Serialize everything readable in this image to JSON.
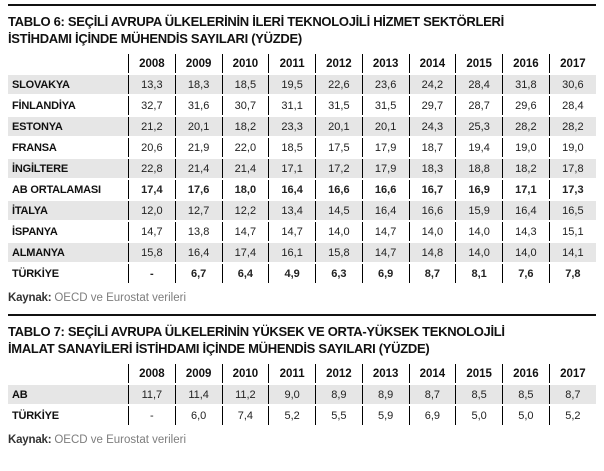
{
  "tables": [
    {
      "title_lines": [
        "TABLO 6: SEÇİLİ AVRUPA ÜLKELERİNİN İLERİ TEKNOLOJİLİ HİZMET SEKTÖRLERİ",
        "İSTİHDAMI İÇİNDE MÜHENDİS SAYILARI (YÜZDE)"
      ],
      "years": [
        "2008",
        "2009",
        "2010",
        "2011",
        "2012",
        "2013",
        "2014",
        "2015",
        "2016",
        "2017"
      ],
      "rows": [
        {
          "label": "SLOVAKYA",
          "bold": false,
          "values": [
            "13,3",
            "18,3",
            "18,5",
            "19,5",
            "22,6",
            "23,6",
            "24,2",
            "28,4",
            "31,8",
            "30,6"
          ]
        },
        {
          "label": "FİNLANDİYA",
          "bold": false,
          "values": [
            "32,7",
            "31,6",
            "30,7",
            "31,1",
            "31,5",
            "31,5",
            "29,7",
            "28,7",
            "29,6",
            "28,4"
          ]
        },
        {
          "label": "ESTONYA",
          "bold": false,
          "values": [
            "21,2",
            "20,1",
            "18,2",
            "23,3",
            "20,1",
            "20,1",
            "24,3",
            "25,3",
            "28,2",
            "28,2"
          ]
        },
        {
          "label": "FRANSA",
          "bold": false,
          "values": [
            "20,6",
            "21,9",
            "22,0",
            "18,5",
            "17,5",
            "17,9",
            "18,7",
            "19,4",
            "19,0",
            "19,0"
          ]
        },
        {
          "label": "İNGİLTERE",
          "bold": false,
          "values": [
            "22,8",
            "21,4",
            "21,4",
            "17,1",
            "17,2",
            "17,9",
            "18,3",
            "18,8",
            "18,2",
            "17,8"
          ]
        },
        {
          "label": "AB ORTALAMASI",
          "bold": true,
          "values": [
            "17,4",
            "17,6",
            "18,0",
            "16,4",
            "16,6",
            "16,6",
            "16,7",
            "16,9",
            "17,1",
            "17,3"
          ]
        },
        {
          "label": "İTALYA",
          "bold": false,
          "values": [
            "12,0",
            "12,7",
            "12,2",
            "13,4",
            "14,5",
            "16,4",
            "16,6",
            "15,9",
            "16,4",
            "16,5"
          ]
        },
        {
          "label": "İSPANYA",
          "bold": false,
          "values": [
            "14,7",
            "13,8",
            "14,7",
            "14,7",
            "14,0",
            "14,7",
            "14,0",
            "14,0",
            "14,3",
            "15,1"
          ]
        },
        {
          "label": "ALMANYA",
          "bold": false,
          "values": [
            "15,8",
            "16,4",
            "17,4",
            "16,1",
            "15,8",
            "14,7",
            "14,8",
            "14,0",
            "14,0",
            "14,1"
          ]
        },
        {
          "label": "TÜRKİYE",
          "bold": true,
          "values": [
            "-",
            "6,7",
            "6,4",
            "4,9",
            "6,3",
            "6,9",
            "8,7",
            "8,1",
            "7,6",
            "7,8"
          ]
        }
      ],
      "source": {
        "label": "Kaynak:",
        "text": "OECD ve Eurostat verileri"
      }
    },
    {
      "title_lines": [
        "TABLO 7: SEÇİLİ AVRUPA ÜLKELERİNİN YÜKSEK VE ORTA-YÜKSEK TEKNOLOJİLİ",
        "İMALAT SANAYİLERİ İSTİHDAMI İÇİNDE MÜHENDİS SAYILARI (YÜZDE)"
      ],
      "years": [
        "2008",
        "2009",
        "2010",
        "2011",
        "2012",
        "2013",
        "2014",
        "2015",
        "2016",
        "2017"
      ],
      "rows": [
        {
          "label": "AB",
          "bold": false,
          "values": [
            "11,7",
            "11,4",
            "11,2",
            "9,0",
            "8,9",
            "8,9",
            "8,7",
            "8,5",
            "8,5",
            "8,7"
          ]
        },
        {
          "label": "TÜRKİYE",
          "bold": false,
          "values": [
            "-",
            "6,0",
            "7,4",
            "5,2",
            "5,5",
            "5,9",
            "6,9",
            "5,0",
            "5,0",
            "5,2"
          ]
        }
      ],
      "source": {
        "label": "Kaynak:",
        "text": "OECD ve Eurostat verileri"
      }
    }
  ],
  "colors": {
    "rule": "#111111",
    "row_stripe": "#e6e6e6",
    "grid_line": "#000000",
    "source_text": "#7d7d7d"
  }
}
